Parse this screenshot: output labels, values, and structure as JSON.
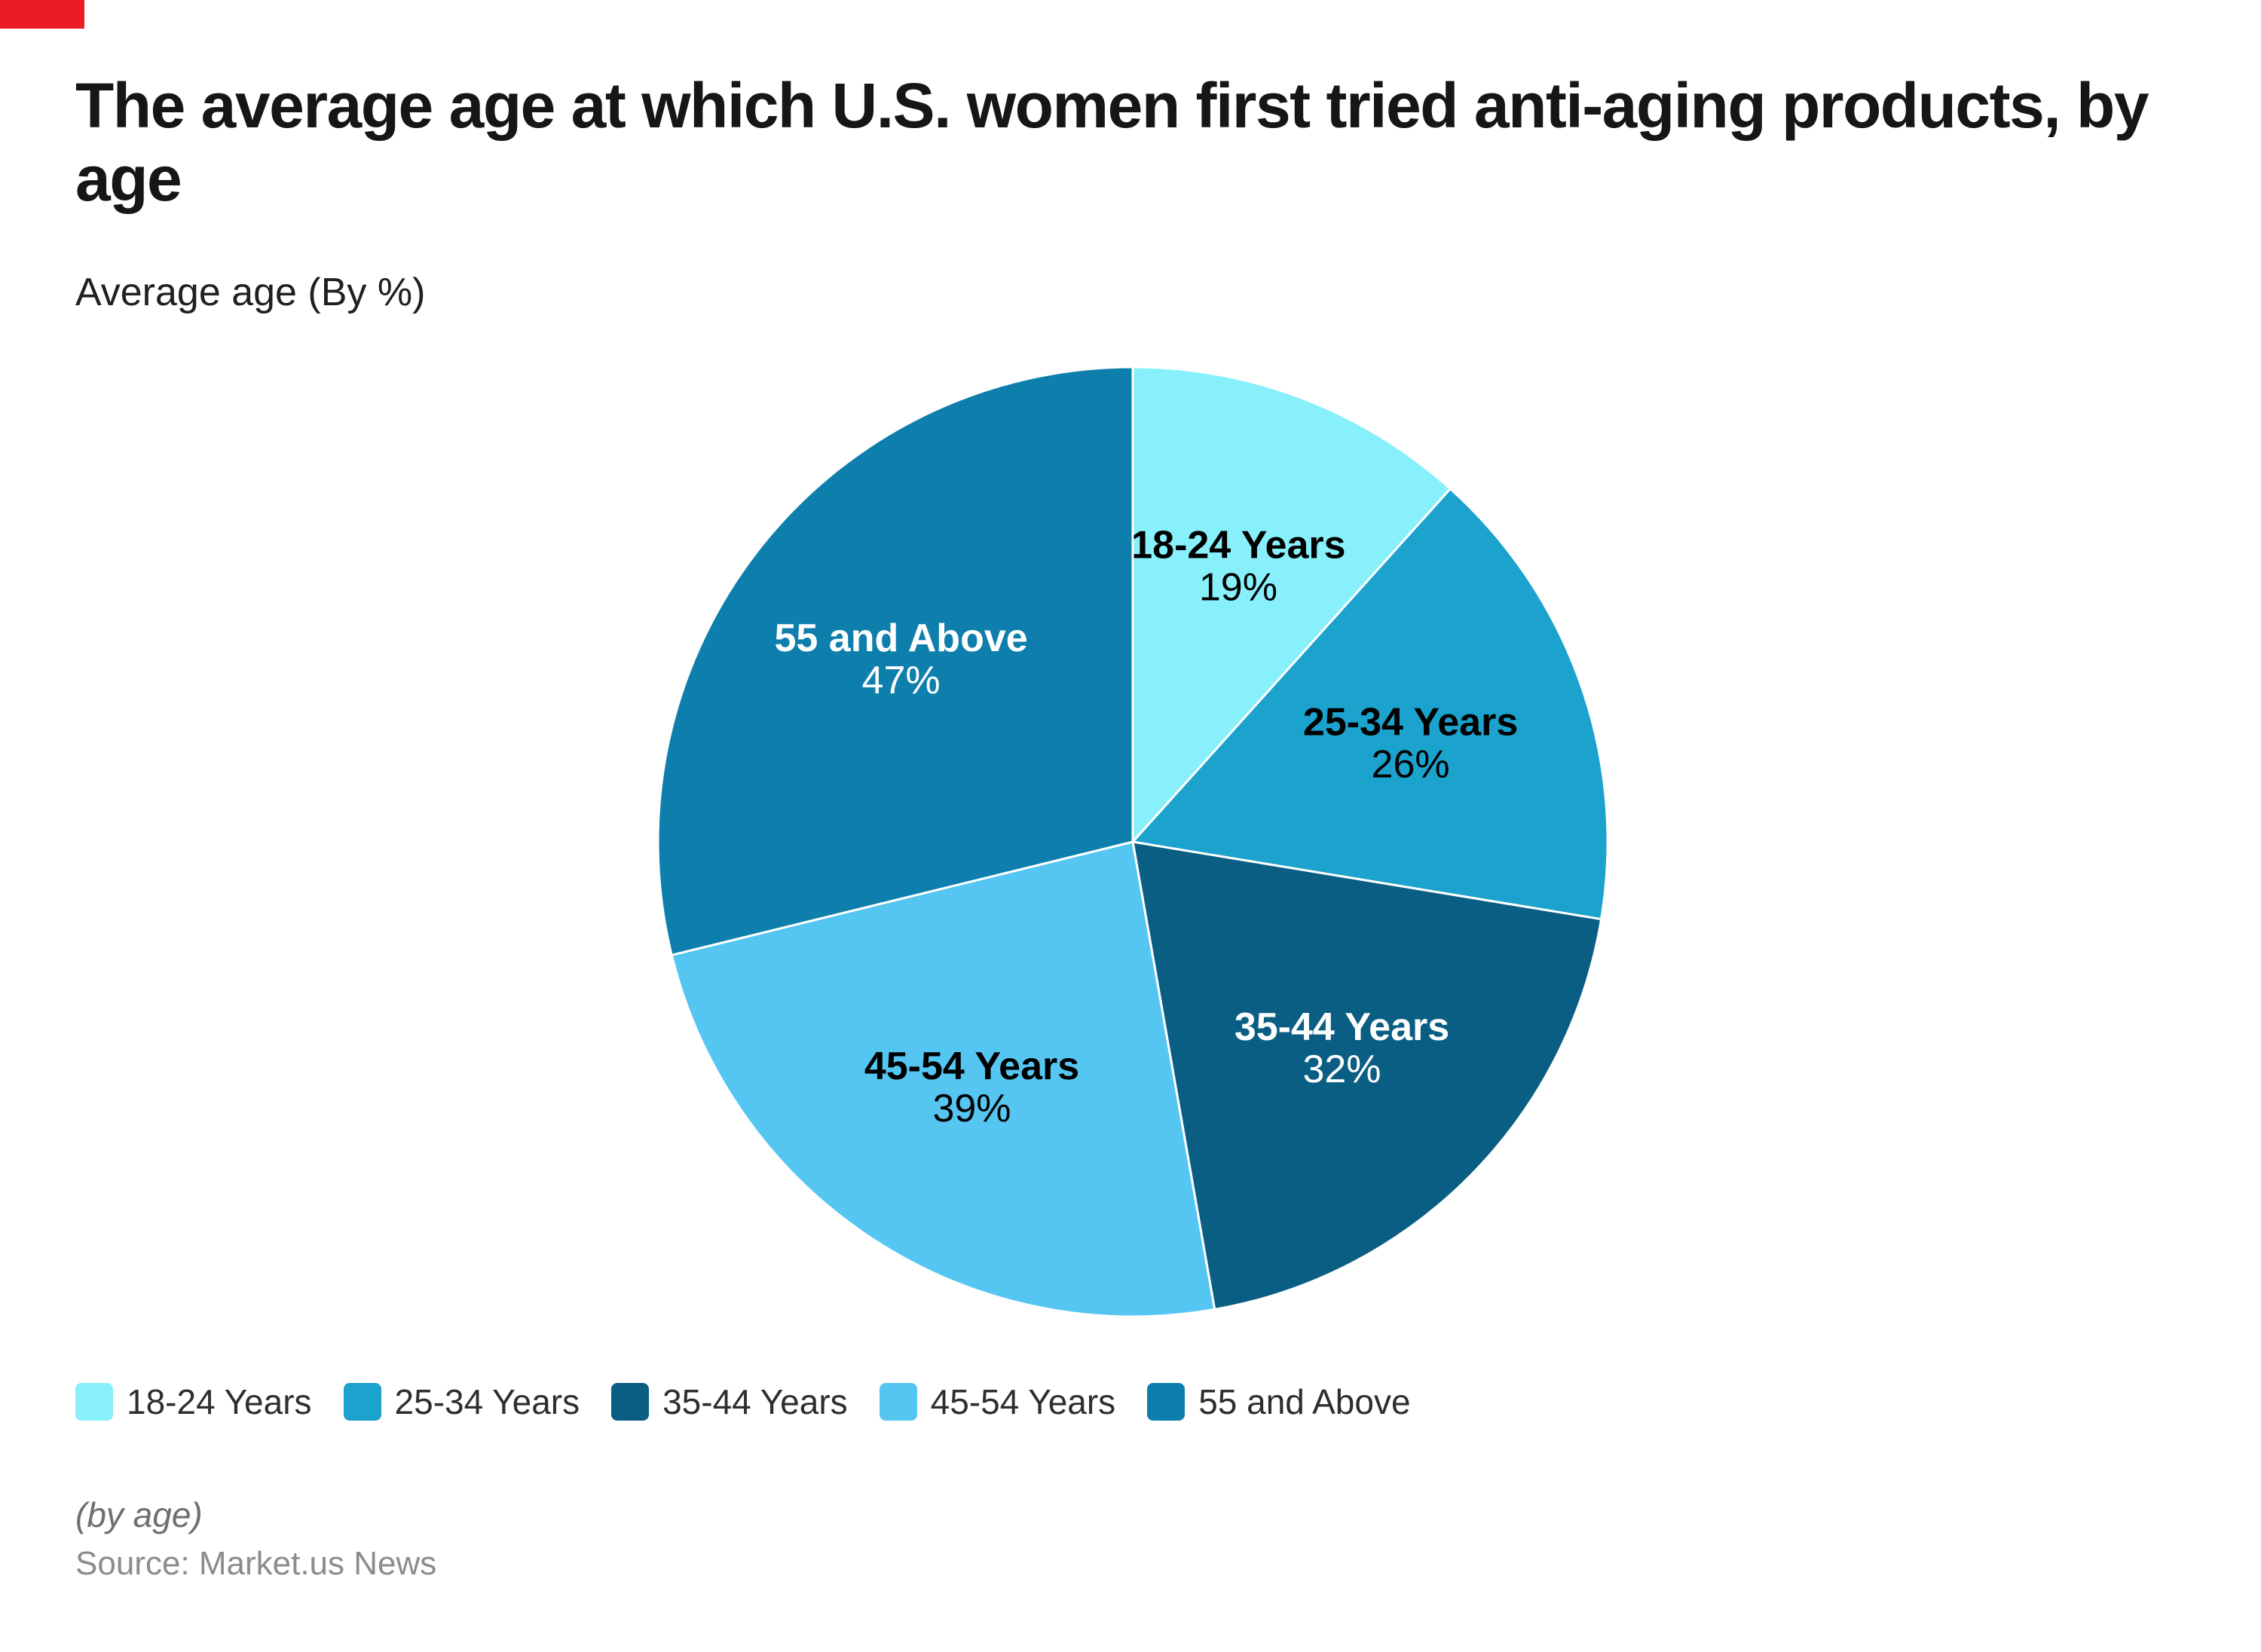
{
  "header": {
    "title": "The average age at which U.S. women first tried anti-aging products, by age",
    "subtitle": "Average age (By %)"
  },
  "footer": {
    "byline": "(by age)",
    "source": "Source: Market.us News"
  },
  "decor": {
    "corner_mark_color": "#EC1C24"
  },
  "chart_data": {
    "type": "pie",
    "title": "The average age at which U.S. women first tried anti-aging products, by age",
    "subtitle": "Average age (By %)",
    "unit": "%",
    "start_angle_deg": -90,
    "direction": "clockwise",
    "legend_position": "bottom",
    "note": "slice angles proportional to value / sum(values); values sum to 163",
    "slices": [
      {
        "label": "18-24 Years",
        "value": 19,
        "display": "19%",
        "color": "#87F0FB",
        "label_color": "#000000"
      },
      {
        "label": "25-34 Years",
        "value": 26,
        "display": "26%",
        "color": "#1BA2CD",
        "label_color": "#000000"
      },
      {
        "label": "35-44 Years",
        "value": 32,
        "display": "32%",
        "color": "#0B5E83",
        "label_color": "#FFFFFF"
      },
      {
        "label": "45-54 Years",
        "value": 39,
        "display": "39%",
        "color": "#55C6F2",
        "label_color": "#000000"
      },
      {
        "label": "55 and Above",
        "value": 47,
        "display": "47%",
        "color": "#0E7FAC",
        "label_color": "#FFFFFF"
      }
    ],
    "legend": [
      "18-24 Years",
      "25-34 Years",
      "35-44 Years",
      "45-54 Years",
      "55 and Above"
    ]
  }
}
